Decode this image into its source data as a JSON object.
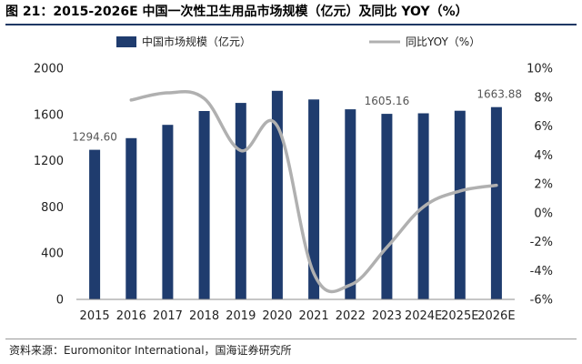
{
  "title": "图 21：2015-2026E 中国一次性卫生用品市场规模（亿元）及同比 YOY（%）",
  "source": "资料来源：Euromonitor International，国海证券研究所",
  "colors": {
    "bar": "#1f3c6e",
    "line": "#b0b0b0",
    "title_rule": "#1f3864"
  },
  "chart_data": {
    "type": "bar",
    "categories": [
      "2015",
      "2016",
      "2017",
      "2018",
      "2019",
      "2020",
      "2021",
      "2022",
      "2023",
      "2024E",
      "2025E",
      "2026E"
    ],
    "series": [
      {
        "name": "中国市场规模（亿元）",
        "type": "bar",
        "axis": "left",
        "values": [
          1294.6,
          1395,
          1510,
          1630,
          1700,
          1805,
          1730,
          1645,
          1605.16,
          1610,
          1632,
          1663.88
        ]
      },
      {
        "name": "同比YOY（%）",
        "type": "line",
        "axis": "right",
        "values": [
          null,
          7.8,
          8.3,
          7.9,
          4.3,
          6.0,
          -4.2,
          -5.0,
          -2.4,
          0.4,
          1.5,
          1.9
        ]
      }
    ],
    "y_left": {
      "min": 0,
      "max": 2000,
      "ticks": [
        "0",
        "400",
        "800",
        "1200",
        "1600",
        "2000"
      ]
    },
    "y_right": {
      "min": -6,
      "max": 10,
      "ticks": [
        "-6%",
        "-4%",
        "-2%",
        "0%",
        "2%",
        "4%",
        "6%",
        "8%",
        "10%"
      ]
    },
    "data_labels": [
      {
        "index": 0,
        "text": "1294.60"
      },
      {
        "index": 8,
        "text": "1605.16"
      },
      {
        "index": 11,
        "text": "1663.88"
      }
    ],
    "legend_position": "top",
    "grid": false
  }
}
